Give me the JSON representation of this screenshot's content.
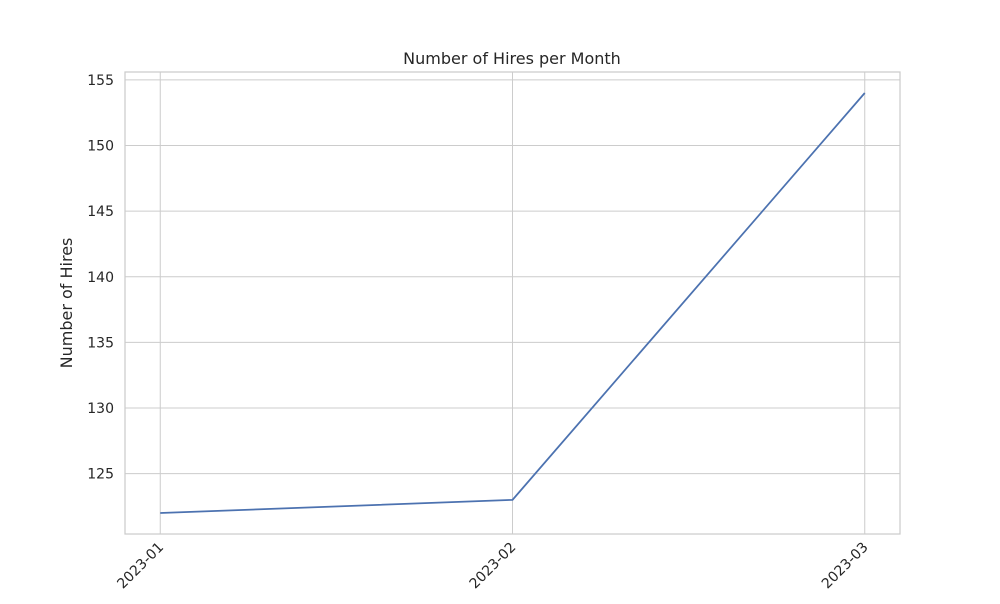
{
  "chart_data": {
    "type": "line",
    "title": "Number of Hires per Month",
    "xlabel": "",
    "ylabel": "Number of Hires",
    "x": [
      "2023-01",
      "2023-02",
      "2023-03"
    ],
    "series": [
      {
        "values": [
          122,
          123,
          154
        ],
        "color": "#4c72b0"
      }
    ],
    "ylim": [
      120.4,
      155.6
    ],
    "yticks": [
      125,
      130,
      135,
      140,
      145,
      150,
      155
    ],
    "grid": true,
    "legend": "none"
  }
}
